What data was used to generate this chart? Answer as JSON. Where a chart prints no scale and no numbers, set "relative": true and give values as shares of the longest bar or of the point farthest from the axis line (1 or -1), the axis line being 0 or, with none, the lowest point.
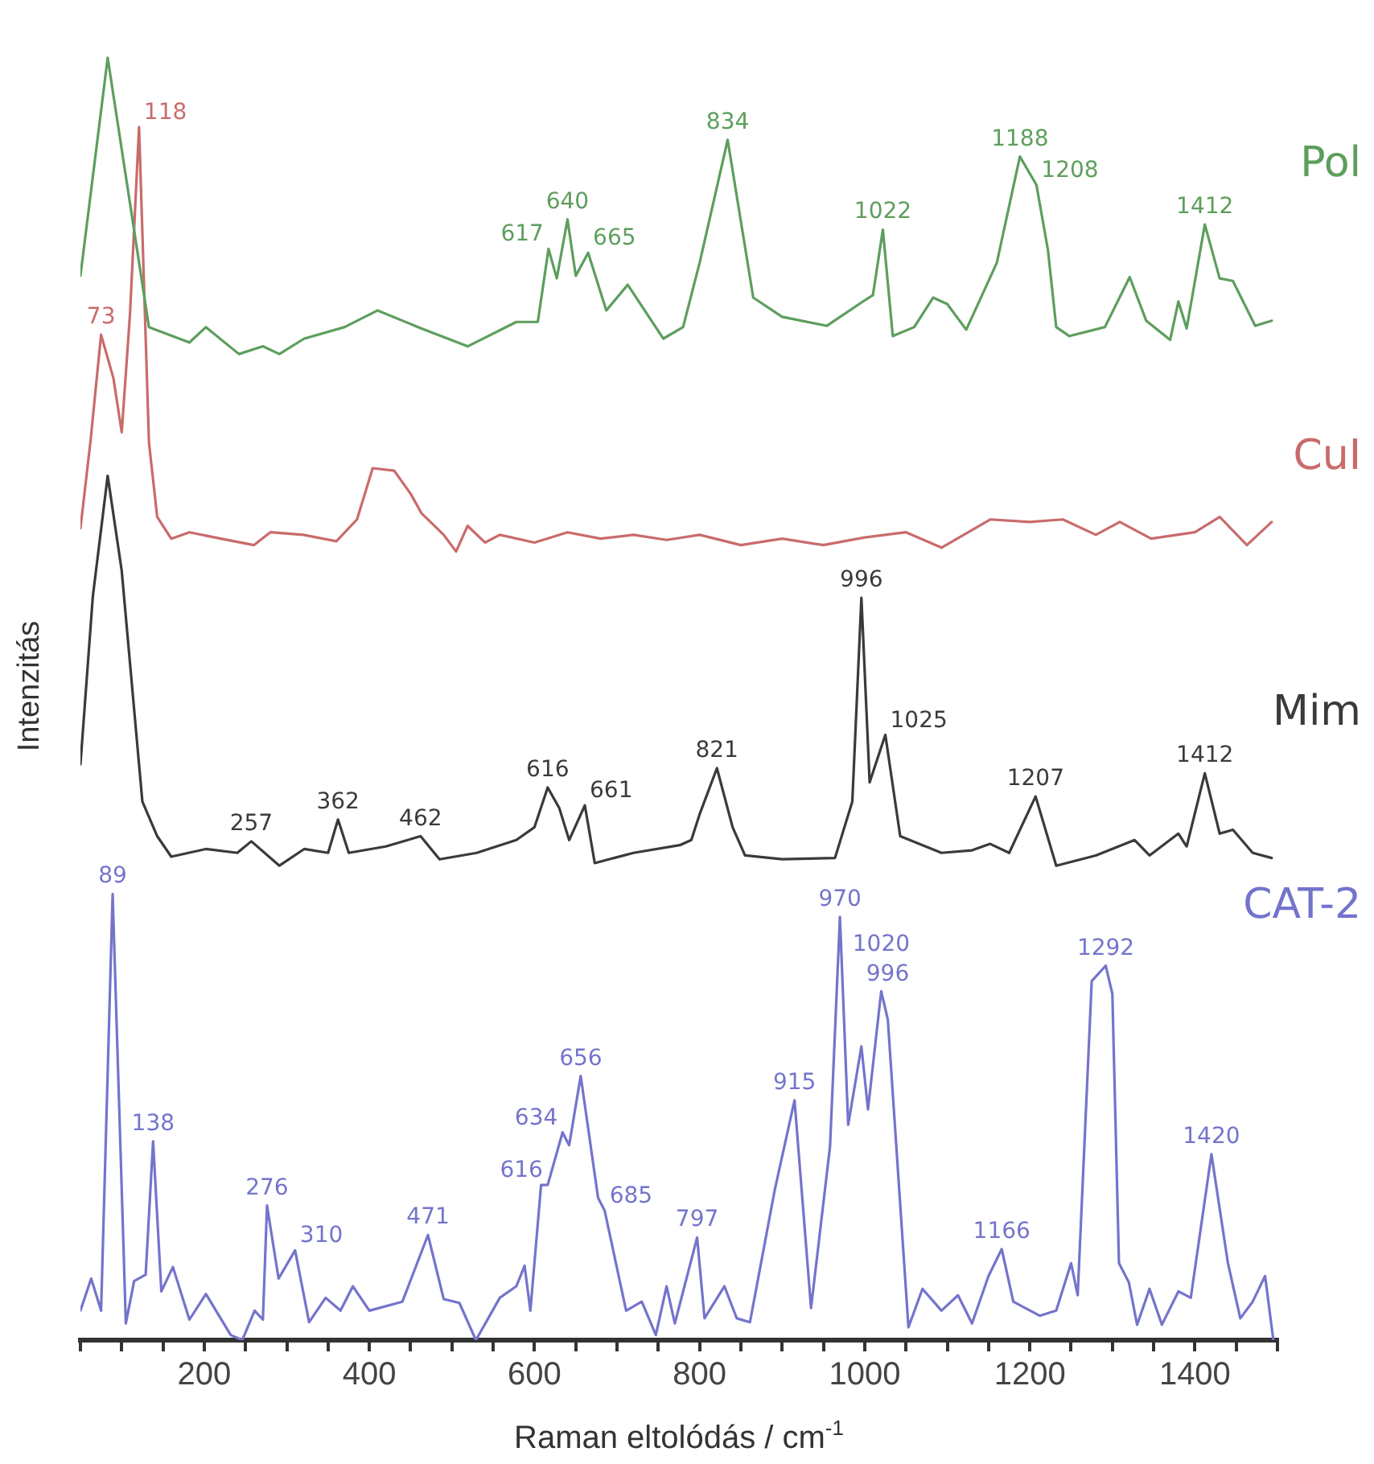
{
  "chart_data": {
    "type": "line",
    "relative": true,
    "xlabel": "Raman eltolódás / cm$^{-1}$",
    "ylabel": "Intenzitás",
    "marker": "none",
    "xlim": [
      50,
      1500
    ],
    "xticks": [
      {
        "value": 50,
        "label": null
      },
      {
        "value": 100,
        "label": null
      },
      {
        "value": 150,
        "label": null
      },
      200,
      {
        "value": 250,
        "label": null
      },
      {
        "value": 300,
        "label": null
      },
      {
        "value": 350,
        "label": null
      },
      400,
      {
        "value": 450,
        "label": null
      },
      {
        "value": 500,
        "label": null
      },
      {
        "value": 550,
        "label": null
      },
      600,
      {
        "value": 650,
        "label": null
      },
      {
        "value": 700,
        "label": null
      },
      {
        "value": 750,
        "label": null
      },
      800,
      {
        "value": 850,
        "label": null
      },
      {
        "value": 900,
        "label": null
      },
      {
        "value": 950,
        "label": null
      },
      1000,
      {
        "value": 1050,
        "label": null
      },
      {
        "value": 1100,
        "label": null
      },
      {
        "value": 1150,
        "label": null
      },
      1200,
      {
        "value": 1250,
        "label": null
      },
      {
        "value": 1300,
        "label": null
      },
      {
        "value": 1350,
        "label": null
      },
      1400,
      {
        "value": 1450,
        "label": null
      },
      {
        "value": 1500,
        "label": null
      }
    ],
    "series": [
      {
        "name": "Pol",
        "color": "#5d9e5d",
        "x": [
          50,
          83,
          133,
          182,
          202,
          242,
          271,
          291,
          321,
          370,
          410,
          459,
          519,
          578,
          604,
          617,
          627,
          640,
          650,
          665,
          687,
          713,
          756,
          780,
          800,
          834,
          865,
          900,
          954,
          998,
          1010,
          1022,
          1034,
          1060,
          1083,
          1100,
          1123,
          1160,
          1188,
          1208,
          1222,
          1232,
          1248,
          1291,
          1321,
          1341,
          1370,
          1380,
          1390,
          1412,
          1430,
          1446,
          1473,
          1493
        ],
        "values": [
          0.83,
          1.0,
          0.79,
          0.778,
          0.79,
          0.769,
          0.775,
          0.769,
          0.781,
          0.79,
          0.803,
          0.79,
          0.775,
          0.794,
          0.794,
          0.851,
          0.828,
          0.874,
          0.83,
          0.848,
          0.803,
          0.823,
          0.781,
          0.79,
          0.84,
          0.936,
          0.813,
          0.798,
          0.791,
          0.81,
          0.815,
          0.866,
          0.783,
          0.79,
          0.813,
          0.808,
          0.788,
          0.84,
          0.923,
          0.901,
          0.85,
          0.79,
          0.783,
          0.79,
          0.829,
          0.795,
          0.78,
          0.81,
          0.789,
          0.87,
          0.828,
          0.826,
          0.791,
          0.795
        ]
      },
      {
        "name": "CuI",
        "color": "#c96b6b",
        "x": [
          50,
          62,
          75,
          90,
          100,
          110,
          121,
          133,
          143,
          160,
          182,
          220,
          260,
          280,
          320,
          360,
          385,
          404,
          430,
          450,
          463,
          490,
          505,
          519,
          540,
          558,
          600,
          640,
          680,
          720,
          760,
          800,
          850,
          900,
          950,
          1000,
          1050,
          1093,
          1120,
          1152,
          1200,
          1240,
          1280,
          1309,
          1347,
          1400,
          1430,
          1463,
          1493
        ],
        "values": [
          0.633,
          0.7,
          0.784,
          0.75,
          0.708,
          0.8,
          0.946,
          0.7,
          0.642,
          0.625,
          0.63,
          0.625,
          0.62,
          0.63,
          0.628,
          0.623,
          0.64,
          0.68,
          0.678,
          0.66,
          0.645,
          0.628,
          0.615,
          0.635,
          0.622,
          0.628,
          0.622,
          0.63,
          0.625,
          0.628,
          0.624,
          0.628,
          0.62,
          0.625,
          0.62,
          0.626,
          0.63,
          0.618,
          0.628,
          0.64,
          0.638,
          0.64,
          0.628,
          0.638,
          0.625,
          0.63,
          0.642,
          0.62,
          0.638
        ]
      },
      {
        "name": "Mim",
        "color": "#3a3a3a",
        "x": [
          50,
          65,
          83,
          100,
          125,
          143,
          160,
          202,
          240,
          257,
          291,
          321,
          350,
          362,
          375,
          420,
          462,
          485,
          530,
          578,
          600,
          616,
          630,
          642,
          661,
          673,
          720,
          776,
          790,
          800,
          821,
          840,
          855,
          900,
          964,
          985,
          996,
          1006,
          1025,
          1043,
          1093,
          1130,
          1152,
          1175,
          1207,
          1232,
          1280,
          1327,
          1345,
          1380,
          1390,
          1412,
          1430,
          1446,
          1470,
          1493
        ],
        "values": [
          0.449,
          0.58,
          0.674,
          0.6,
          0.42,
          0.393,
          0.377,
          0.383,
          0.38,
          0.389,
          0.37,
          0.383,
          0.38,
          0.406,
          0.38,
          0.385,
          0.393,
          0.375,
          0.38,
          0.39,
          0.4,
          0.431,
          0.415,
          0.39,
          0.417,
          0.372,
          0.38,
          0.386,
          0.39,
          0.41,
          0.446,
          0.4,
          0.378,
          0.375,
          0.376,
          0.42,
          0.579,
          0.435,
          0.472,
          0.393,
          0.38,
          0.382,
          0.387,
          0.38,
          0.424,
          0.37,
          0.378,
          0.39,
          0.378,
          0.395,
          0.385,
          0.442,
          0.395,
          0.398,
          0.38,
          0.376
        ]
      },
      {
        "name": "CAT-2",
        "color": "#7474cc",
        "x": [
          50,
          63,
          75,
          89,
          105,
          115,
          129,
          138,
          148,
          162,
          182,
          202,
          232,
          246,
          261,
          271,
          276,
          290,
          310,
          327,
          347,
          365,
          380,
          400,
          440,
          471,
          490,
          509,
          529,
          558,
          578,
          588,
          595,
          608,
          616,
          634,
          642,
          656,
          677,
          685,
          711,
          730,
          747,
          760,
          770,
          797,
          806,
          830,
          845,
          861,
          891,
          915,
          935,
          958,
          970,
          980,
          996,
          1004,
          1020,
          1028,
          1053,
          1070,
          1093,
          1113,
          1130,
          1150,
          1166,
          1180,
          1212,
          1232,
          1250,
          1258,
          1275,
          1292,
          1300,
          1308,
          1320,
          1330,
          1345,
          1360,
          1380,
          1395,
          1420,
          1440,
          1455,
          1470,
          1485,
          1495
        ],
        "values": [
          0.023,
          0.048,
          0.023,
          0.348,
          0.013,
          0.046,
          0.051,
          0.155,
          0.038,
          0.057,
          0.016,
          0.036,
          0.004,
          0,
          0.023,
          0.016,
          0.105,
          0.048,
          0.07,
          0.014,
          0.033,
          0.023,
          0.042,
          0.023,
          0.03,
          0.082,
          0.032,
          0.029,
          0,
          0.033,
          0.042,
          0.058,
          0.023,
          0.121,
          0.121,
          0.162,
          0.152,
          0.206,
          0.111,
          0.101,
          0.023,
          0.03,
          0.004,
          0.042,
          0.013,
          0.08,
          0.017,
          0.042,
          0.017,
          0.014,
          0.117,
          0.187,
          0.025,
          0.151,
          0.33,
          0.168,
          0.229,
          0.18,
          0.272,
          0.25,
          0.01,
          0.04,
          0.023,
          0.035,
          0.013,
          0.05,
          0.071,
          0.03,
          0.019,
          0.023,
          0.06,
          0.035,
          0.28,
          0.292,
          0.27,
          0.06,
          0.045,
          0.012,
          0.04,
          0.012,
          0.038,
          0.033,
          0.145,
          0.06,
          0.017,
          0.03,
          0.05,
          0
        ]
      }
    ],
    "annotations": [
      {
        "text": "617",
        "x": 617,
        "y": 0.851
      },
      {
        "text": "640",
        "x": 640,
        "y": 0.874
      },
      {
        "text": "665",
        "x": 665,
        "y": 0.848
      },
      {
        "text": "834",
        "x": 834,
        "y": 0.936
      },
      {
        "text": "1022",
        "x": 1022,
        "y": 0.866
      },
      {
        "text": "1188",
        "x": 1188,
        "y": 0.923
      },
      {
        "text": "1208",
        "x": 1208,
        "y": 0.901
      },
      {
        "text": "1412",
        "x": 1412,
        "y": 0.87
      },
      {
        "text": "73",
        "x": 75,
        "y": 0.784
      },
      {
        "text": "118",
        "x": 121,
        "y": 0.946
      },
      {
        "text": "257",
        "x": 257,
        "y": 0.389
      },
      {
        "text": "362",
        "x": 362,
        "y": 0.406
      },
      {
        "text": "462",
        "x": 462,
        "y": 0.393
      },
      {
        "text": "616",
        "x": 616,
        "y": 0.431
      },
      {
        "text": "661",
        "x": 661,
        "y": 0.417
      },
      {
        "text": "821",
        "x": 821,
        "y": 0.446
      },
      {
        "text": "996",
        "x": 996,
        "y": 0.579
      },
      {
        "text": "1025",
        "x": 1025,
        "y": 0.472
      },
      {
        "text": "1207",
        "x": 1207,
        "y": 0.424
      },
      {
        "text": "1412",
        "x": 1412,
        "y": 0.442
      },
      {
        "text": "89",
        "x": 89,
        "y": 0.348
      },
      {
        "text": "138",
        "x": 138,
        "y": 0.155
      },
      {
        "text": "276",
        "x": 276,
        "y": 0.105
      },
      {
        "text": "310",
        "x": 310,
        "y": 0.07
      },
      {
        "text": "471",
        "x": 471,
        "y": 0.082
      },
      {
        "text": "616",
        "x": 616,
        "y": 0.121
      },
      {
        "text": "634",
        "x": 634,
        "y": 0.162
      },
      {
        "text": "656",
        "x": 656,
        "y": 0.206
      },
      {
        "text": "685",
        "x": 685,
        "y": 0.101
      },
      {
        "text": "797",
        "x": 797,
        "y": 0.08
      },
      {
        "text": "915",
        "x": 915,
        "y": 0.187
      },
      {
        "text": "970",
        "x": 970,
        "y": 0.33
      },
      {
        "text": "996",
        "x": 996,
        "y": 0.229
      },
      {
        "text": "1020",
        "x": 1020,
        "y": 0.272
      },
      {
        "text": "1166",
        "x": 1166,
        "y": 0.071
      },
      {
        "text": "1292",
        "x": 1292,
        "y": 0.292
      },
      {
        "text": "1420",
        "x": 1420,
        "y": 0.145
      }
    ]
  }
}
